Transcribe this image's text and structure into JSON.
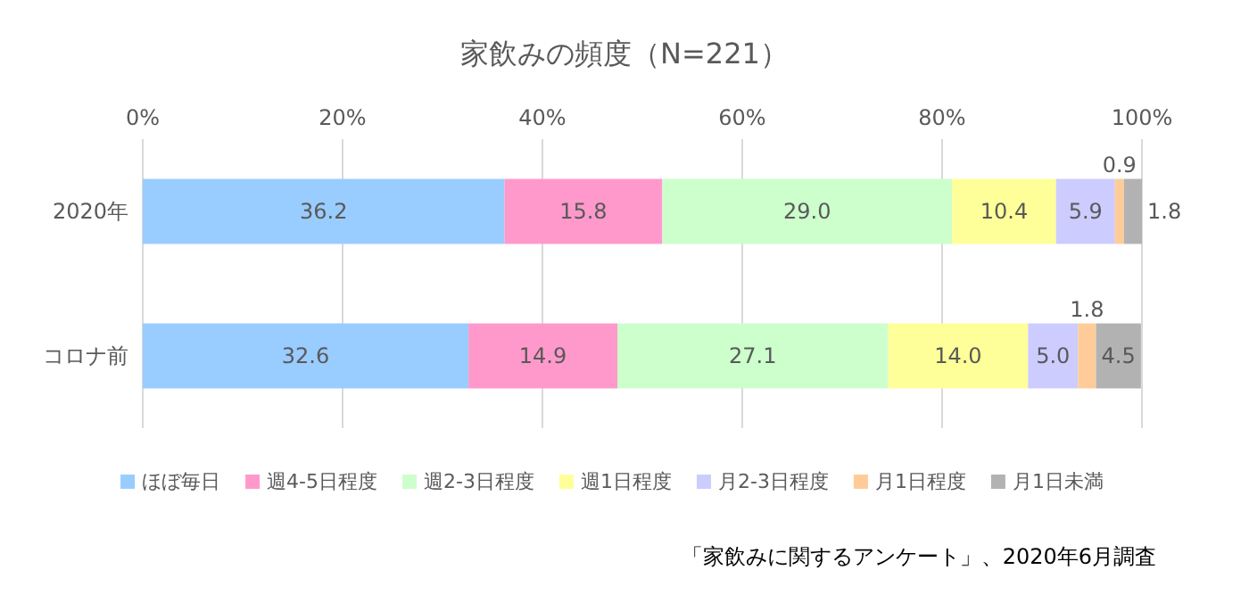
{
  "chart_data": {
    "type": "bar",
    "orientation": "horizontal",
    "stacked": true,
    "title": "家飲みの頻度（N=221）",
    "categories": [
      "2020年",
      "コロナ前"
    ],
    "series": [
      {
        "name": "ほぼ毎日",
        "color": "#99ccff",
        "values": [
          36.2,
          32.6
        ],
        "value_labels": [
          "36.2",
          "32.6"
        ]
      },
      {
        "name": "週4-5日程度",
        "color": "#ff99cc",
        "values": [
          15.8,
          14.9
        ],
        "value_labels": [
          "15.8",
          "14.9"
        ]
      },
      {
        "name": "週2-3日程度",
        "color": "#ccffcc",
        "values": [
          29.0,
          27.1
        ],
        "value_labels": [
          "29.0",
          "27.1"
        ]
      },
      {
        "name": "週1日程度",
        "color": "#ffff99",
        "values": [
          10.4,
          14.0
        ],
        "value_labels": [
          "10.4",
          "14.0"
        ]
      },
      {
        "name": "月2-3日程度",
        "color": "#ccccff",
        "values": [
          5.9,
          5.0
        ],
        "value_labels": [
          "5.9",
          "5.0"
        ]
      },
      {
        "name": "月1日程度",
        "color": "#ffcc99",
        "values": [
          0.9,
          1.8
        ],
        "value_labels": [
          "0.9",
          "1.8"
        ]
      },
      {
        "name": "月1日未満",
        "color": "#b2b2b2",
        "values": [
          1.8,
          4.5
        ],
        "value_labels": [
          "1.8",
          "4.5"
        ]
      }
    ],
    "xlim": [
      0,
      100
    ],
    "xticks": [
      {
        "value": 0,
        "label": "0%"
      },
      {
        "value": 20,
        "label": "20%"
      },
      {
        "value": 40,
        "label": "40%"
      },
      {
        "value": 60,
        "label": "60%"
      },
      {
        "value": 80,
        "label": "80%"
      },
      {
        "value": 100,
        "label": "100%"
      }
    ],
    "grid": "x",
    "legend": "bottom",
    "annotations": [
      "「家飲みに関するアンケート」、2020年6月調査"
    ]
  }
}
